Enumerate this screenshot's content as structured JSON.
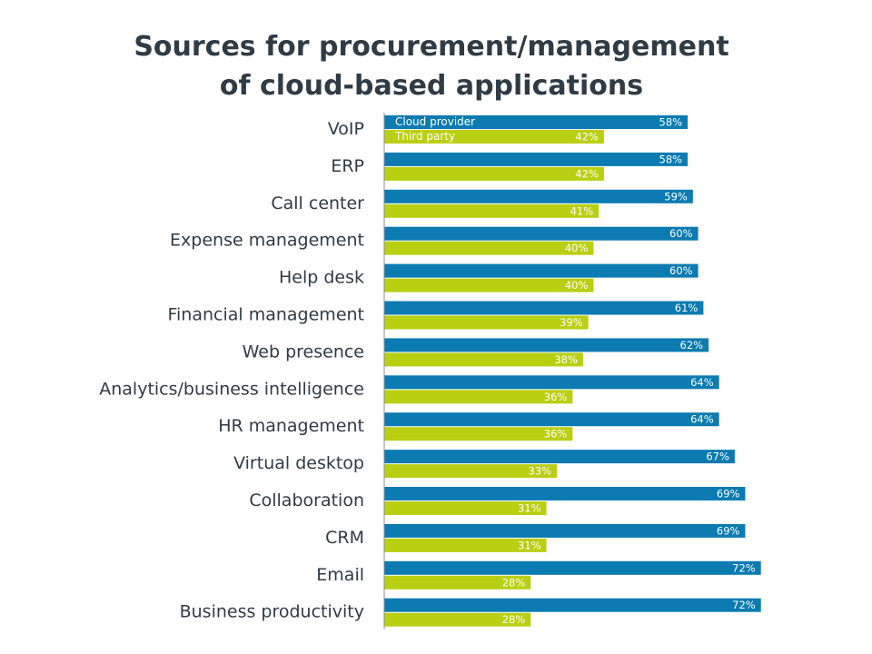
{
  "chart_data": {
    "type": "bar",
    "orientation": "horizontal",
    "title_lines": [
      "Sources for procurement/management",
      "of cloud-based applications"
    ],
    "categories": [
      "VoIP",
      "ERP",
      "Call center",
      "Expense management",
      "Help desk",
      "Financial management",
      "Web presence",
      "Analytics/business intelligence",
      "HR management",
      "Virtual desktop",
      "Collaboration",
      "CRM",
      "Email",
      "Business productivity"
    ],
    "series": [
      {
        "name": "Cloud provider",
        "color": "#0b7bb1",
        "values": [
          58,
          58,
          59,
          60,
          60,
          61,
          62,
          64,
          64,
          67,
          69,
          69,
          72,
          72
        ]
      },
      {
        "name": "Third party",
        "color": "#b9cf13",
        "values": [
          42,
          42,
          41,
          40,
          40,
          39,
          38,
          36,
          36,
          33,
          31,
          31,
          28,
          28
        ]
      }
    ],
    "value_suffix": "%",
    "xlim": [
      0,
      100
    ],
    "grid": false,
    "legend": "inside-first-bars"
  }
}
